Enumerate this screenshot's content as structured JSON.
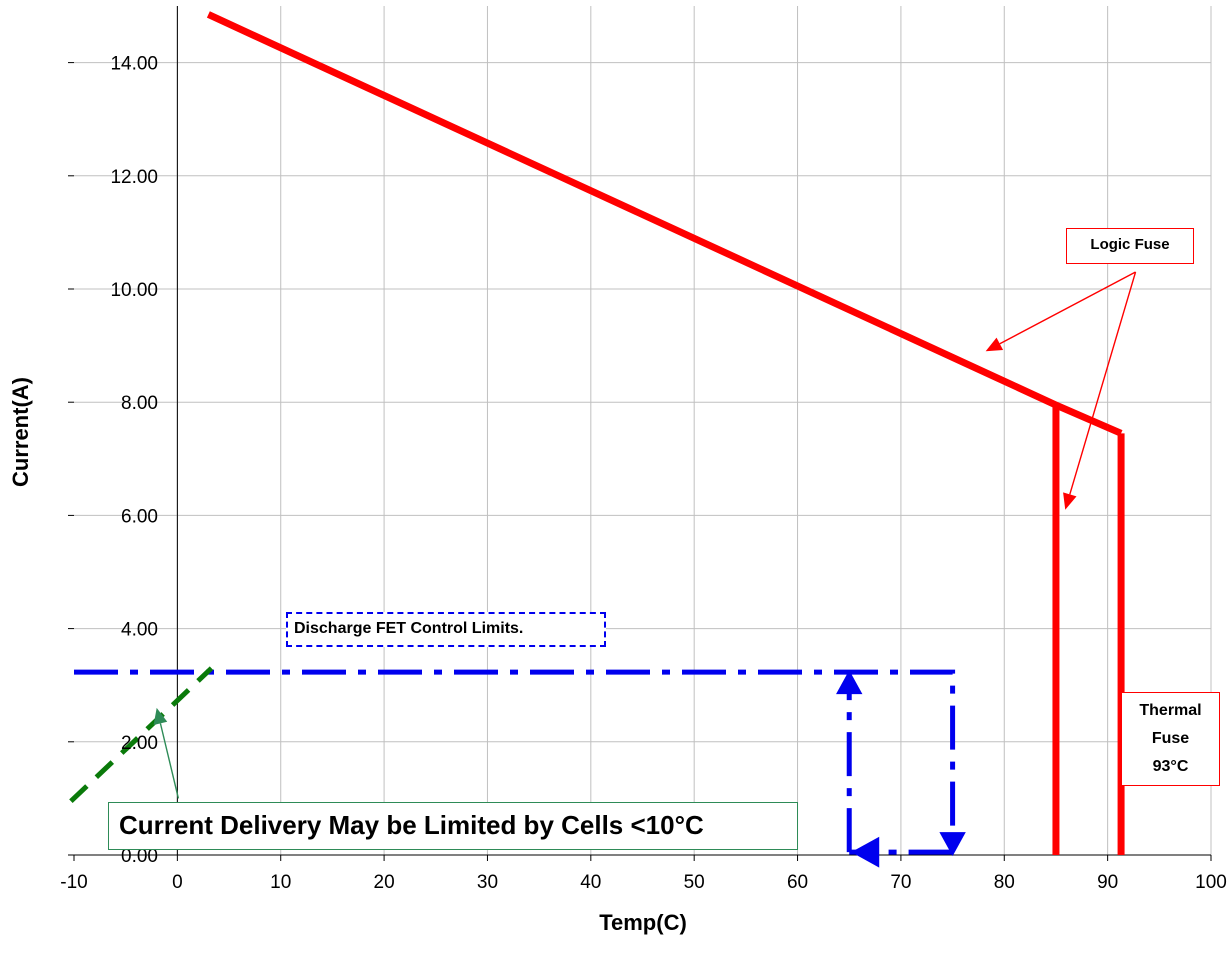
{
  "chart_data": {
    "type": "line",
    "xlabel": "Temp(C)",
    "ylabel": "Current(A)",
    "xlim": [
      -10,
      100
    ],
    "ylim": [
      0,
      15
    ],
    "x_ticks": [
      "-10",
      "0",
      "10",
      "20",
      "30",
      "40",
      "50",
      "60",
      "70",
      "80",
      "90",
      "100"
    ],
    "y_ticks": [
      "0.00",
      "2.00",
      "4.00",
      "6.00",
      "8.00",
      "10.00",
      "12.00",
      "14.00"
    ],
    "grid": true,
    "series": [
      {
        "type": "line",
        "color": "#ff0000",
        "points": [
          [
            3,
            14.85
          ],
          [
            85,
            7.95
          ],
          [
            91.3,
            7.45
          ]
        ]
      },
      {
        "type": "line",
        "color": "#ff0000",
        "points": [
          [
            85,
            7.95
          ],
          [
            85,
            0
          ]
        ]
      },
      {
        "type": "line",
        "color": "#ff0000",
        "points": [
          [
            91.3,
            7.45
          ],
          [
            91.3,
            0
          ]
        ]
      },
      {
        "type": "line",
        "style": "dash-dot",
        "color": "#0000ee",
        "points": [
          [
            -10,
            3.23
          ],
          [
            75,
            3.23
          ],
          [
            75,
            0.05
          ]
        ]
      },
      {
        "type": "line",
        "style": "dash-dot",
        "color": "#0000ee",
        "points": [
          [
            65,
            0.05
          ],
          [
            65,
            3.23
          ]
        ]
      },
      {
        "type": "line",
        "style": "dash-dot",
        "color": "#0000ee",
        "points": [
          [
            75,
            0.05
          ],
          [
            65,
            0.05
          ]
        ]
      },
      {
        "type": "line",
        "style": "dashed",
        "color": "#0a7a0a",
        "points": [
          [
            -10.3,
            0.95
          ],
          [
            3.3,
            3.3
          ]
        ]
      }
    ],
    "annotations": {
      "logic_fuse": "Logic Fuse",
      "thermal_fuse": [
        "Thermal",
        "Fuse",
        "93°C"
      ],
      "fet_limits": "Discharge FET Control Limits.",
      "cells_note": "Current Delivery May be Limited by Cells <10°C"
    },
    "arrows": [
      {
        "color": "#ff0000",
        "from": [
          92.7,
          10.3
        ],
        "to": [
          78.2,
          8.9
        ]
      },
      {
        "color": "#ff0000",
        "from": [
          92.7,
          10.3
        ],
        "to": [
          85.9,
          6.1
        ]
      },
      {
        "color": "#2e8b57",
        "from": [
          0.1,
          1.0
        ],
        "to": [
          -2,
          2.6
        ]
      }
    ]
  }
}
